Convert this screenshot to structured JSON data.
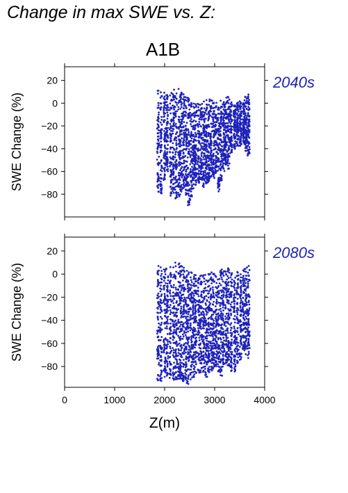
{
  "header": "Change in max SWE vs. Z:",
  "scenario": "A1B",
  "colors": {
    "points": "#1e22b8",
    "label": "#1e22b8",
    "axis": "#000000"
  },
  "chart_data": [
    {
      "type": "scatter",
      "panel_label": "2040s",
      "xlabel": "",
      "ylabel": "SWE Change (%)",
      "xlim": [
        0,
        4000
      ],
      "ylim": [
        -100,
        32
      ],
      "xticks": [
        0,
        1000,
        2000,
        3000,
        4000
      ],
      "xtick_labels": [
        "",
        "",
        "",
        "",
        ""
      ],
      "yticks": [
        20,
        0,
        -20,
        -40,
        -60,
        -80
      ],
      "ytick_labels": [
        "20",
        "0",
        "−20",
        "−40",
        "−60",
        "−80"
      ],
      "grid": false,
      "series": [
        {
          "x": [
            1870,
            1930,
            2000,
            2050,
            2120,
            2180,
            2230,
            2290,
            2330,
            2380,
            2430,
            2480,
            2530,
            2580,
            2620,
            2680,
            2730,
            2780,
            2830,
            2880,
            2930,
            2980,
            3030,
            3080,
            3130,
            3180,
            3230,
            3280,
            3330,
            3400,
            3460,
            3520,
            3580,
            3630,
            3680
          ],
          "y_max": [
            12,
            11,
            10,
            8,
            11,
            12,
            12,
            13,
            10,
            8,
            6,
            5,
            3,
            2,
            1,
            0,
            0,
            2,
            5,
            4,
            3,
            2,
            1,
            0,
            3,
            4,
            5,
            6,
            2,
            0,
            1,
            2,
            3,
            6,
            8
          ],
          "y_min": [
            -78,
            -80,
            -68,
            -60,
            -82,
            -84,
            -86,
            -85,
            -80,
            -75,
            -87,
            -90,
            -86,
            -75,
            -72,
            -70,
            -68,
            -74,
            -72,
            -70,
            -65,
            -66,
            -62,
            -78,
            -68,
            -60,
            -55,
            -58,
            -45,
            -40,
            -38,
            -38,
            -36,
            -42,
            -46
          ]
        }
      ]
    },
    {
      "type": "scatter",
      "panel_label": "2080s",
      "xlabel": "Z(m)",
      "ylabel": "SWE Change (%)",
      "xlim": [
        0,
        4000
      ],
      "ylim": [
        -98,
        32
      ],
      "xticks": [
        0,
        1000,
        2000,
        3000,
        4000
      ],
      "xtick_labels": [
        "0",
        "1000",
        "2000",
        "3000",
        "4000"
      ],
      "yticks": [
        20,
        0,
        -20,
        -40,
        -60,
        -80
      ],
      "ytick_labels": [
        "20",
        "0",
        "−20",
        "−40",
        "−60",
        "−80"
      ],
      "grid": false,
      "series": [
        {
          "x": [
            1870,
            1930,
            2000,
            2050,
            2120,
            2180,
            2230,
            2290,
            2330,
            2380,
            2430,
            2480,
            2530,
            2580,
            2620,
            2680,
            2730,
            2780,
            2830,
            2880,
            2930,
            2980,
            3030,
            3080,
            3130,
            3180,
            3230,
            3280,
            3330,
            3400,
            3460,
            3520,
            3580,
            3630,
            3680
          ],
          "y_max": [
            8,
            7,
            8,
            5,
            7,
            9,
            11,
            11,
            9,
            7,
            6,
            5,
            3,
            2,
            1,
            0,
            1,
            2,
            4,
            3,
            2,
            1,
            0,
            0,
            4,
            5,
            6,
            7,
            3,
            0,
            2,
            3,
            5,
            8,
            13
          ],
          "y_min": [
            -92,
            -93,
            -90,
            -88,
            -90,
            -92,
            -92,
            -93,
            -91,
            -94,
            -95,
            -96,
            -92,
            -90,
            -88,
            -86,
            -85,
            -88,
            -90,
            -86,
            -84,
            -82,
            -80,
            -85,
            -88,
            -82,
            -78,
            -80,
            -84,
            -86,
            -78,
            -75,
            -70,
            -72,
            -74
          ]
        }
      ]
    }
  ]
}
